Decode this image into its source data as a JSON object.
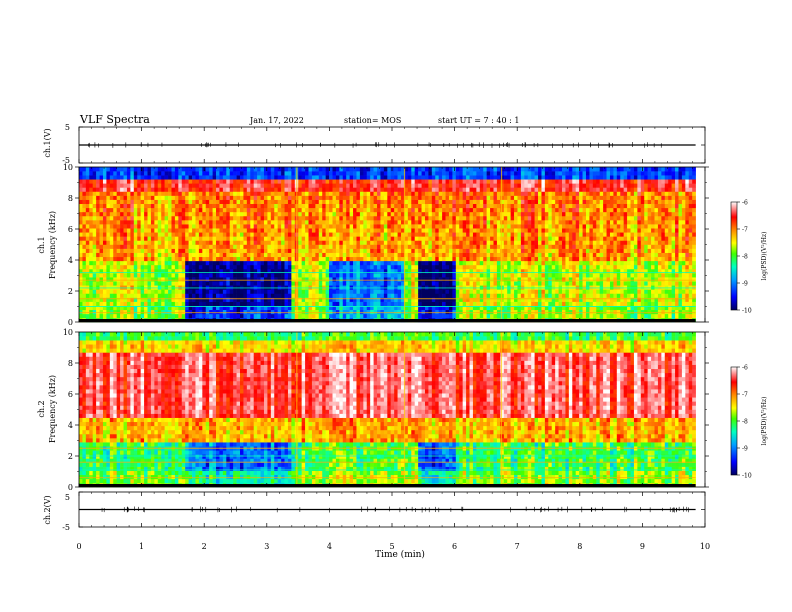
{
  "header": {
    "title": "VLF Spectra",
    "date": "Jan. 17, 2022",
    "station": "station= MOS",
    "start": "start  UT  =   7 : 40 : 1"
  },
  "chart_data": [
    {
      "type": "line",
      "name": "waveform-ch1",
      "ylabel": "ch.1(V)",
      "ylim": [
        -5,
        5
      ],
      "yticks": [
        "5",
        "-5"
      ],
      "x": [
        0,
        10
      ],
      "y": [
        0,
        0
      ]
    },
    {
      "type": "heatmap",
      "name": "spectrogram-ch1",
      "ylabel": "ch.1\nFrequency (kHz)",
      "ylim": [
        0,
        10
      ],
      "yticks": [
        "0",
        "2",
        "4",
        "6",
        "8",
        "10"
      ],
      "xlim": [
        0,
        10
      ],
      "colorbar": {
        "label": "log(PSD)(V²/Hz)",
        "range": [
          -10,
          -6
        ],
        "ticks": [
          "-6",
          "-7",
          "-8",
          "-9",
          "-10"
        ]
      }
    },
    {
      "type": "heatmap",
      "name": "spectrogram-ch2",
      "ylabel": "ch.2\nFrequency (kHz)",
      "ylim": [
        0,
        10
      ],
      "yticks": [
        "0",
        "2",
        "4",
        "6",
        "8",
        "10"
      ],
      "xlim": [
        0,
        10
      ],
      "colorbar": {
        "label": "log(PSD)(V²/Hz)",
        "range": [
          -10,
          -6
        ],
        "ticks": [
          "-6",
          "-7",
          "-8",
          "-9",
          "-10"
        ]
      }
    },
    {
      "type": "line",
      "name": "waveform-ch2",
      "ylabel": "ch.2(V)",
      "ylim": [
        -5,
        5
      ],
      "yticks": [
        "5",
        "-5"
      ],
      "x": [
        0,
        10
      ],
      "y": [
        0,
        0
      ]
    }
  ],
  "xaxis": {
    "label": "Time (min)",
    "range": [
      0,
      10
    ],
    "ticks": [
      "0",
      "1",
      "2",
      "3",
      "4",
      "5",
      "6",
      "7",
      "8",
      "9",
      "10"
    ],
    "data_end": 9.85
  },
  "colors": {
    "high": "#ff0000",
    "low": "#000080"
  }
}
